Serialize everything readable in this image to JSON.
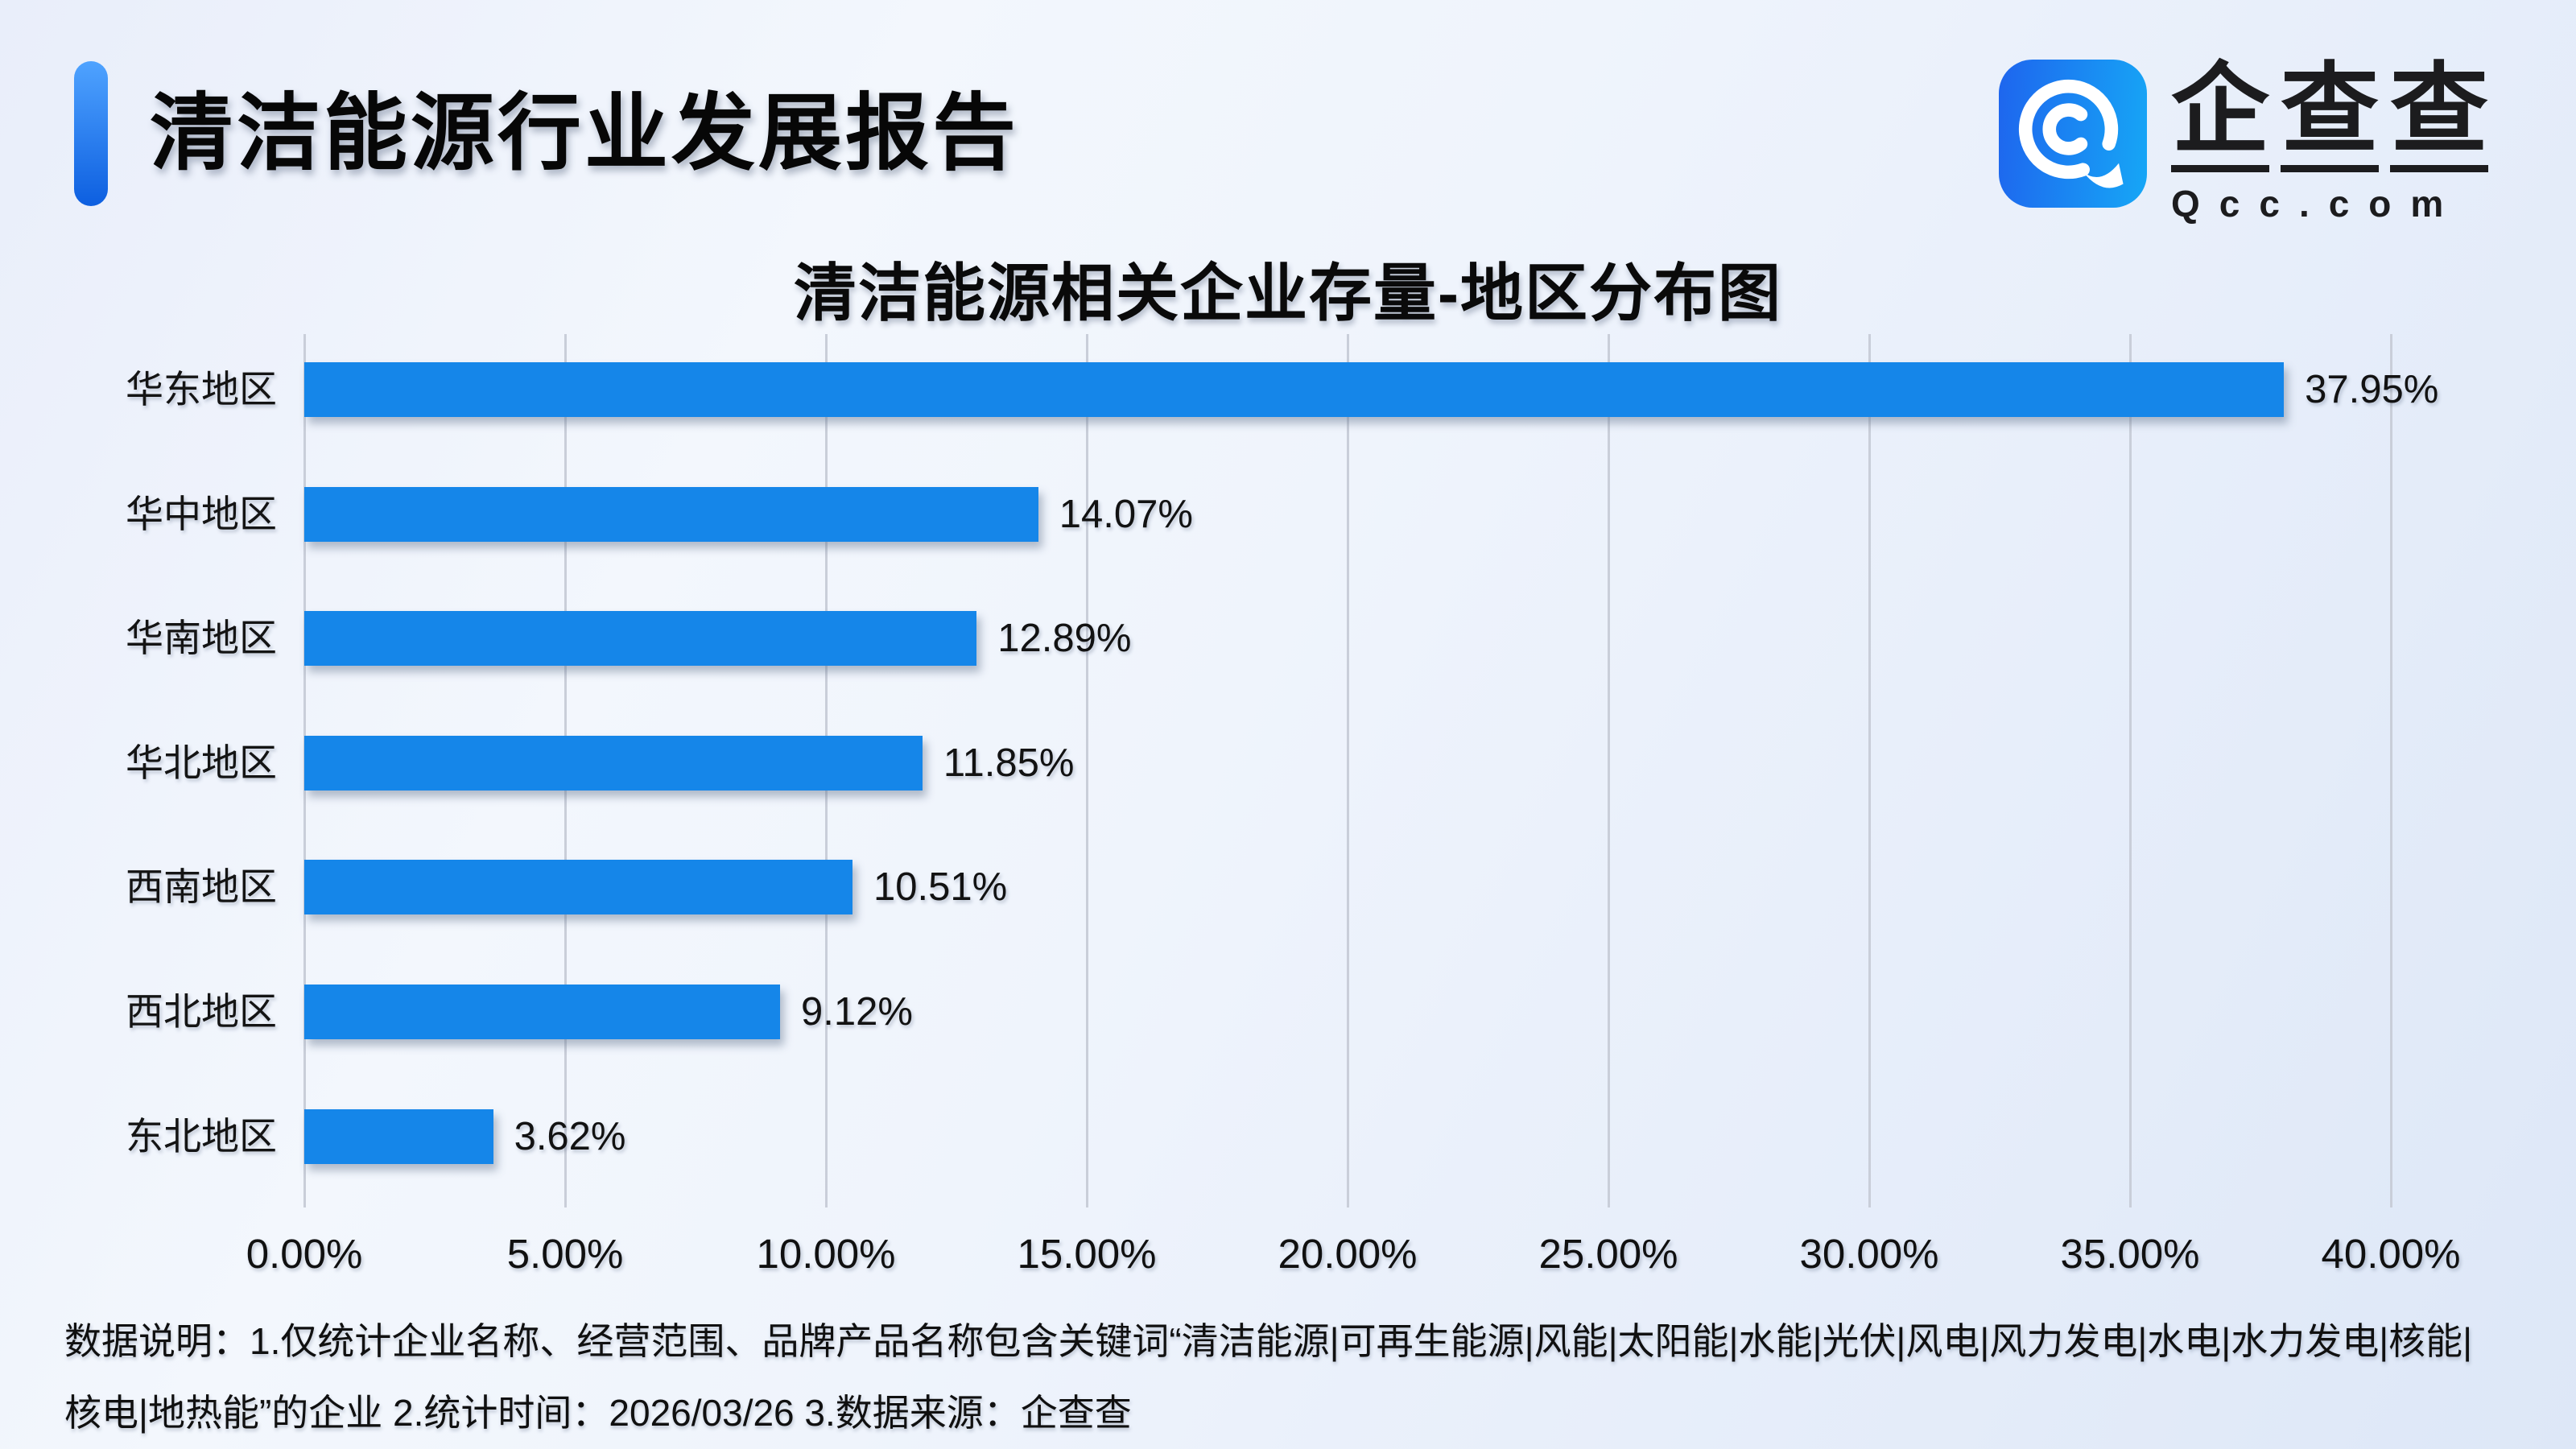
{
  "header": {
    "title": "清洁能源行业发展报告"
  },
  "logo": {
    "name": "企查查",
    "name_chars": [
      "企",
      "查",
      "查"
    ],
    "domain": "Qcc.com"
  },
  "chart_data": {
    "type": "bar",
    "orientation": "horizontal",
    "title": "清洁能源相关企业存量-地区分布图",
    "categories": [
      "华东地区",
      "华中地区",
      "华南地区",
      "华北地区",
      "西南地区",
      "西北地区",
      "东北地区"
    ],
    "values": [
      37.95,
      14.07,
      12.89,
      11.85,
      10.51,
      9.12,
      3.62
    ],
    "value_labels": [
      "37.95%",
      "14.07%",
      "12.89%",
      "11.85%",
      "10.51%",
      "9.12%",
      "3.62%"
    ],
    "xlim": [
      0,
      40
    ],
    "x_ticks": [
      "0.00%",
      "5.00%",
      "10.00%",
      "15.00%",
      "20.00%",
      "25.00%",
      "30.00%",
      "35.00%",
      "40.00%"
    ],
    "grid": true,
    "legend": false,
    "xlabel": "",
    "ylabel": ""
  },
  "footer": {
    "line1": "数据说明：1.仅统计企业名称、经营范围、品牌产品名称包含关键词“清洁能源|可再生能源|风能|太阳能|水能|光伏|风电|风力发电|水电|水力发电|核能|",
    "line2": "核电|地热能”的企业  2.统计时间：2026/03/26  3.数据来源：企查查"
  },
  "colors": {
    "bar": "#1586E9",
    "accent_top": "#4FA3FF",
    "accent_bottom": "#0D5FE0",
    "logo_gradient_left": "#1E65EE",
    "logo_gradient_right": "#16A7F6",
    "grid_line": "#C9CED9",
    "text": "#111111"
  }
}
